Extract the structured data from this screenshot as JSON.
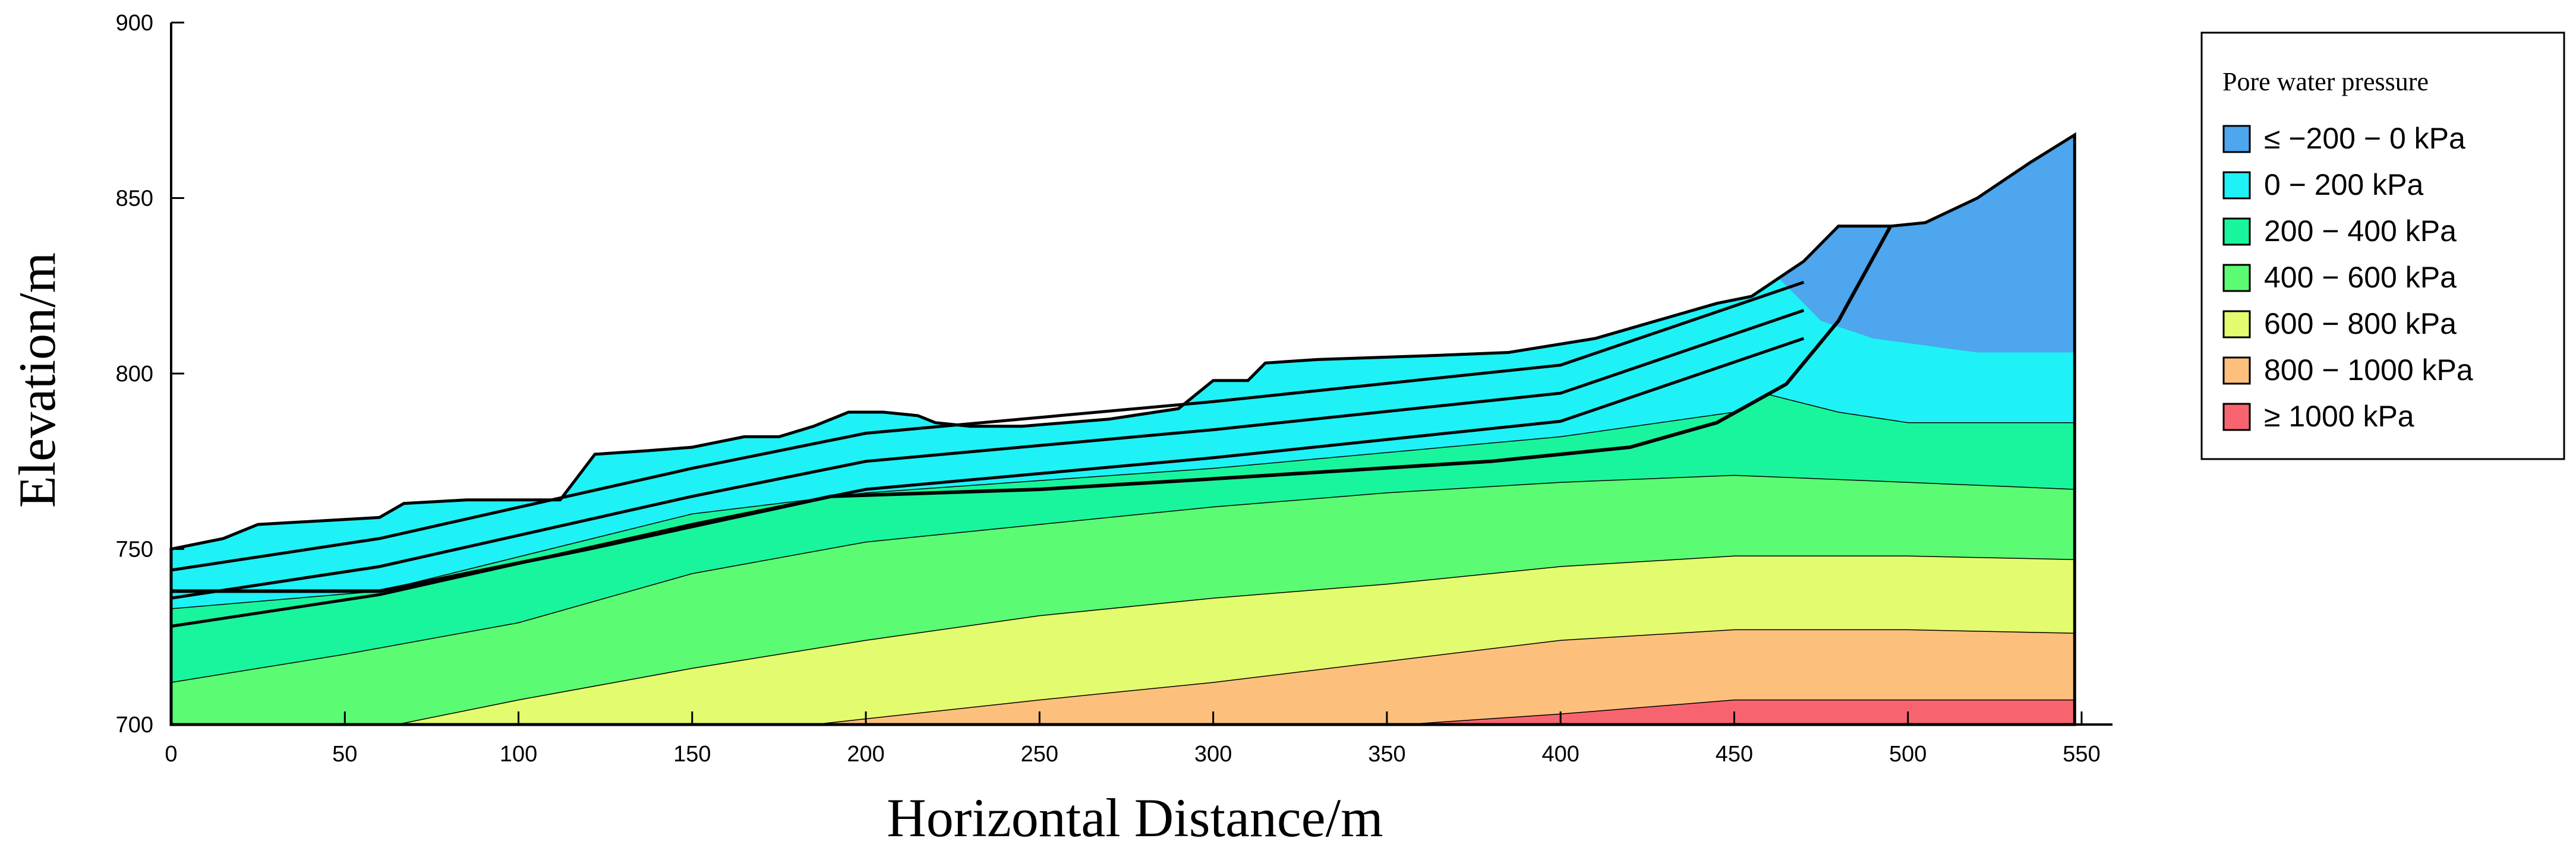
{
  "chart_data": {
    "type": "area",
    "xlabel": "Horizontal Distance/m",
    "ylabel": "Elevation/m",
    "xlim": [
      0,
      550
    ],
    "ylim": [
      700,
      900
    ],
    "x_ticks": [
      "0",
      "50",
      "100",
      "150",
      "200",
      "250",
      "300",
      "350",
      "400",
      "450",
      "500",
      "550"
    ],
    "y_ticks": [
      "700",
      "750",
      "800",
      "850",
      "900"
    ],
    "legend": {
      "title": "Pore water pressure",
      "position": "top-right",
      "items": [
        {
          "label": "≤ −200 − 0 kPa",
          "color": "#4da6ee"
        },
        {
          "label": "0 − 200 kPa",
          "color": "#1ef2f6"
        },
        {
          "label": "200 − 400 kPa",
          "color": "#19f59c"
        },
        {
          "label": "400 − 600 kPa",
          "color": "#5bfb74"
        },
        {
          "label": "600 − 800 kPa",
          "color": "#e3fb6e"
        },
        {
          "label": "800 − 1000  kPa",
          "color": "#fcc07c"
        },
        {
          "label": "≥ 1000  kPa",
          "color": "#f76470"
        }
      ]
    },
    "ground_surface": {
      "x": [
        0,
        15,
        25,
        60,
        67,
        85,
        112,
        122,
        137,
        150,
        155,
        165,
        175,
        185,
        195,
        205,
        215,
        220,
        230,
        245,
        270,
        290,
        300,
        310,
        315,
        330,
        360,
        385,
        410,
        445,
        455,
        470,
        480,
        495,
        505,
        520,
        535,
        548
      ],
      "y": [
        750,
        753,
        757,
        759,
        763,
        764,
        764,
        777,
        778,
        779,
        780,
        782,
        782,
        785,
        789,
        789,
        788,
        786,
        785,
        785,
        787,
        790,
        798,
        798,
        803,
        804,
        805,
        806,
        810,
        820,
        822,
        832,
        842,
        842,
        843,
        850,
        860,
        868
      ]
    },
    "contours": [
      {
        "level_kpa": 0,
        "x": [
          460,
          475,
          490,
          520,
          548
        ],
        "y": [
          830,
          815,
          810,
          806,
          806
        ]
      },
      {
        "level_kpa": 200,
        "x": [
          0,
          60,
          150,
          200,
          300,
          400,
          450,
          460,
          480,
          500,
          548
        ],
        "y": [
          733,
          738,
          760,
          766,
          773,
          782,
          789,
          794,
          789,
          786,
          786
        ]
      },
      {
        "level_kpa": 400,
        "x": [
          0,
          50,
          100,
          150,
          200,
          250,
          300,
          350,
          400,
          450,
          500,
          548
        ],
        "y": [
          712,
          720,
          729,
          743,
          752,
          757,
          762,
          766,
          769,
          771,
          769,
          767
        ]
      },
      {
        "level_kpa": 600,
        "x": [
          65,
          100,
          150,
          200,
          250,
          300,
          350,
          400,
          450,
          500,
          548
        ],
        "y": [
          700,
          707,
          716,
          724,
          731,
          736,
          740,
          745,
          748,
          748,
          747
        ]
      },
      {
        "level_kpa": 800,
        "x": [
          185,
          250,
          300,
          350,
          400,
          450,
          500,
          548
        ],
        "y": [
          700,
          707,
          712,
          718,
          724,
          727,
          727,
          726
        ]
      },
      {
        "level_kpa": 1000,
        "x": [
          355,
          400,
          450,
          500,
          548
        ],
        "y": [
          700,
          703,
          707,
          707,
          707
        ]
      }
    ]
  }
}
